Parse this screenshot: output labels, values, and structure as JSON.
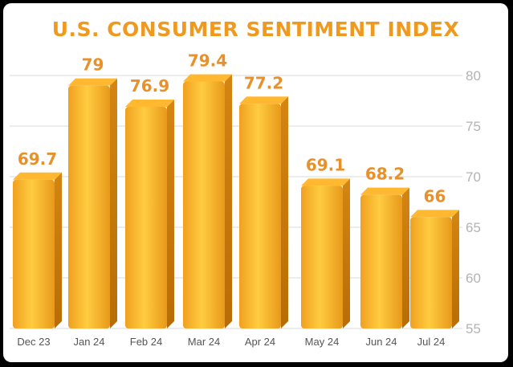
{
  "colors": {
    "title": "#ef9a1f",
    "value_labels": "#e8912a",
    "bar_front_light": "#ffc933",
    "bar_front_dark": "#d98a10",
    "bar_top": "#ffb830",
    "bar_side": "#c97a08",
    "grid": "#d9d9d9",
    "background": "#ffffff"
  },
  "chart_data": {
    "type": "bar",
    "title": "U.S. CONSUMER SENTIMENT INDEX",
    "categories": [
      "Dec 23",
      "Jan 24",
      "Feb 24",
      "Mar 24",
      "Apr 24",
      "May 24",
      "Jun 24",
      "Jul 24"
    ],
    "values": [
      69.7,
      79,
      76.9,
      79.4,
      77.2,
      69.1,
      68.2,
      66
    ],
    "data_labels": [
      "69.7",
      "79",
      "76.9",
      "79.4",
      "77.2",
      "69.1",
      "68.2",
      "66"
    ],
    "ylim": [
      55,
      80
    ],
    "yticks": [
      55,
      60,
      65,
      70,
      75,
      80
    ],
    "y_axis_side": "right",
    "grid": true,
    "style": "3d-bars"
  }
}
